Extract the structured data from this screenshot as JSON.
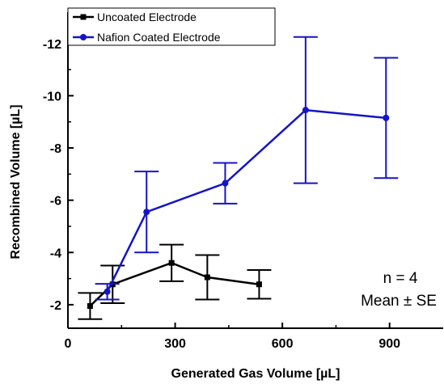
{
  "chart_data": {
    "type": "line",
    "xlabel": "Generated Gas Volume [µL]",
    "ylabel": "Recombined Volume [µL]",
    "xlim": [
      0,
      1050
    ],
    "ylim": [
      -1.1,
      -13.2
    ],
    "x_ticks": [
      0,
      300,
      600,
      900
    ],
    "x_tick_labels": [
      "0",
      "300",
      "600",
      "900"
    ],
    "y_ticks": [
      -2,
      -4,
      -6,
      -8,
      -10,
      -12
    ],
    "y_tick_labels": [
      "-2",
      "-4",
      "-6",
      "-8",
      "-10",
      "-12"
    ],
    "grid": false,
    "legend_position": "top-left",
    "series": [
      {
        "name": "Uncoated Electrode",
        "color": "#000000",
        "marker": "square",
        "x": [
          62,
          125,
          290,
          390,
          535
        ],
        "y": [
          -1.95,
          -2.78,
          -3.6,
          -3.05,
          -2.78
        ],
        "error": [
          0.5,
          0.72,
          0.7,
          0.85,
          0.55
        ]
      },
      {
        "name": "Nafion Coated Electrode",
        "color": "#1414c8",
        "marker": "circle",
        "x": [
          110,
          220,
          440,
          665,
          890
        ],
        "y": [
          -2.5,
          -5.55,
          -6.65,
          -9.45,
          -9.15
        ],
        "error": [
          0.3,
          1.55,
          0.78,
          2.8,
          2.3
        ]
      }
    ],
    "annotations": [
      "n = 4",
      "Mean ± SE"
    ]
  }
}
